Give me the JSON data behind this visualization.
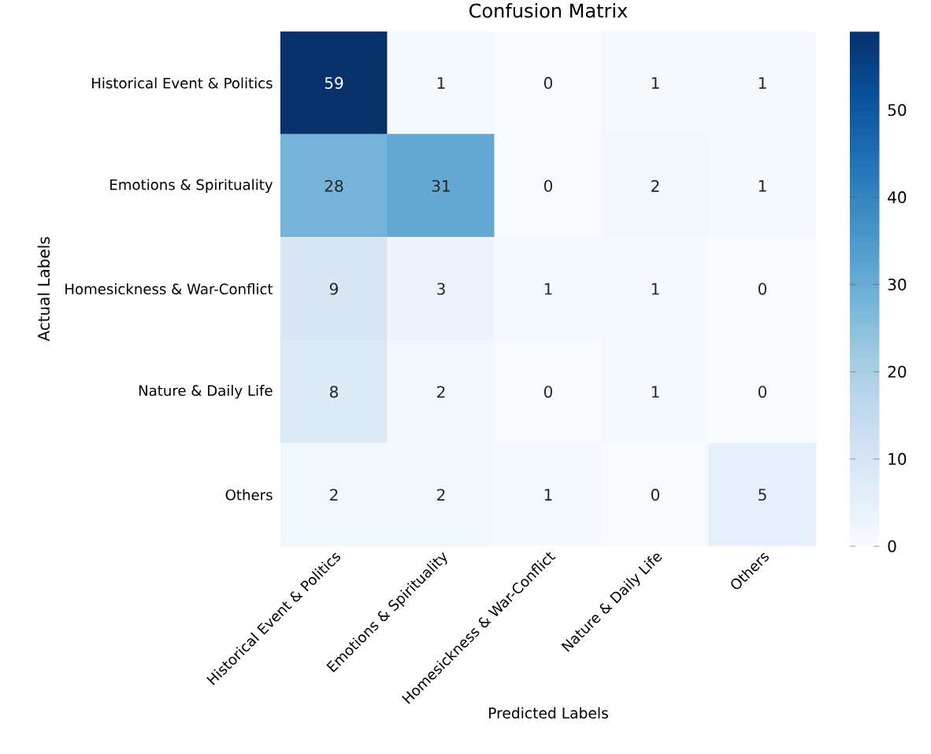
{
  "chart_data": {
    "type": "heatmap",
    "title": "Confusion Matrix",
    "xlabel": "Predicted Labels",
    "ylabel": "Actual Labels",
    "categories": [
      "Historical Event & Politics",
      "Emotions & Spirituality",
      "Homesickness & War-Conflict",
      "Nature & Daily Life",
      "Others"
    ],
    "y_categories": [
      "Historical Event & Politics",
      "Emotions & Spirituality",
      "Homesickness & War-Conflict",
      "Nature & Daily Life",
      "Others"
    ],
    "cells": [
      [
        59,
        1,
        0,
        1,
        1
      ],
      [
        28,
        31,
        0,
        2,
        1
      ],
      [
        9,
        3,
        1,
        1,
        0
      ],
      [
        8,
        2,
        0,
        1,
        0
      ],
      [
        2,
        2,
        1,
        0,
        5
      ]
    ],
    "data_labels": true,
    "clim": [
      0,
      59
    ],
    "cticks": [
      0,
      10,
      20,
      30,
      40,
      50
    ]
  }
}
